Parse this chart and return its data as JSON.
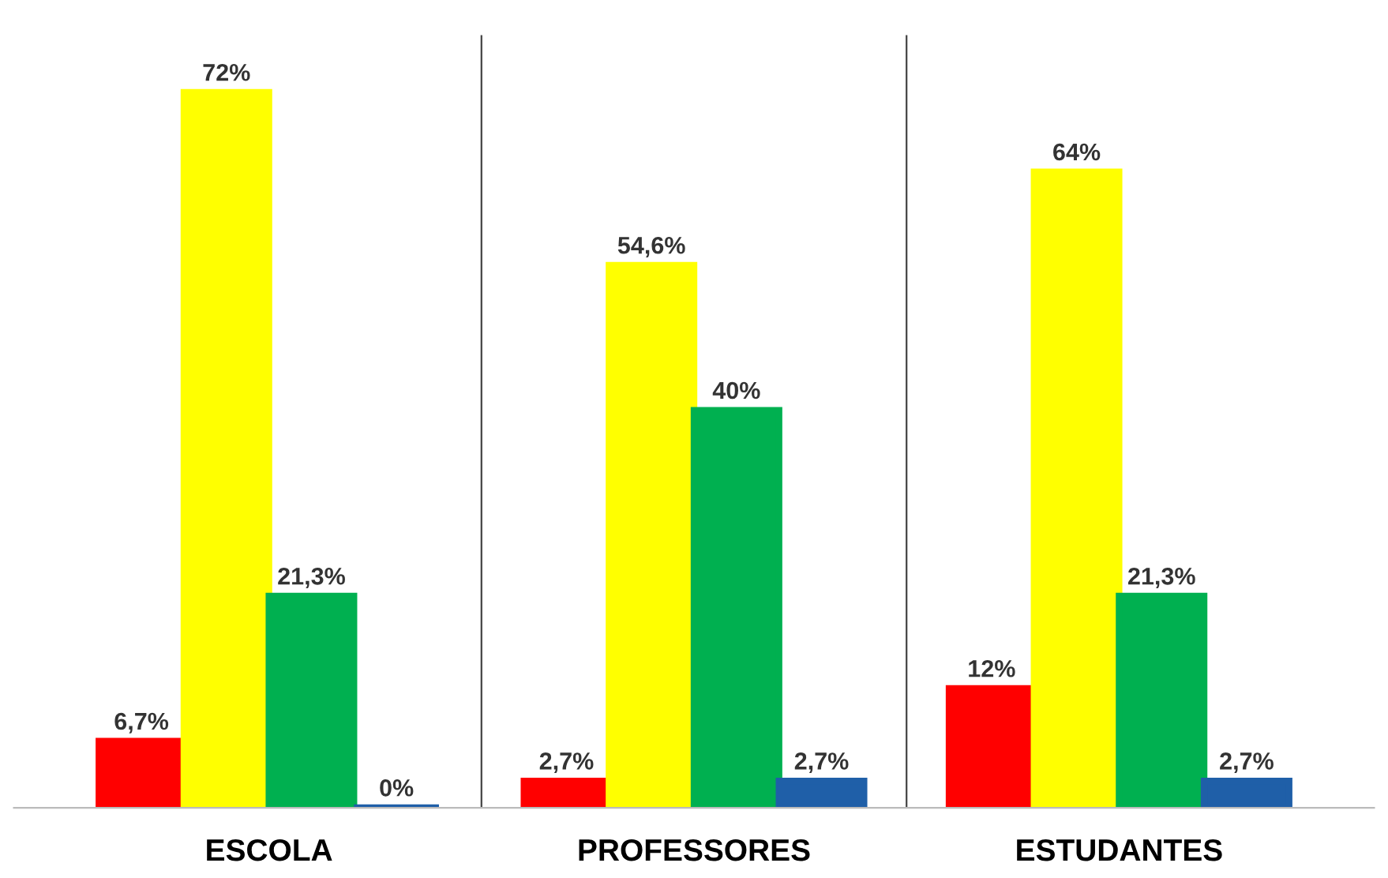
{
  "chart_data": {
    "type": "bar",
    "categories": [
      "ESCOLA",
      "PROFESSORES",
      "ESTUDANTES"
    ],
    "series": [
      {
        "color": "#ff0000",
        "values": [
          6.7,
          2.7,
          12
        ],
        "value_labels": [
          "6,7%",
          "2,7%",
          "12%"
        ]
      },
      {
        "color": "#ffff00",
        "values": [
          72,
          54.6,
          64
        ],
        "value_labels": [
          "72%",
          "54,6%",
          "64%"
        ]
      },
      {
        "color": "#00b050",
        "values": [
          21.3,
          40,
          21.3
        ],
        "value_labels": [
          "21,3%",
          "40%",
          "21,3%"
        ]
      },
      {
        "color": "#1f5fa8",
        "values": [
          0,
          2.7,
          2.7
        ],
        "value_labels": [
          "0%",
          "2,7%",
          "2,7%"
        ]
      }
    ],
    "grid": false,
    "legend": false
  }
}
